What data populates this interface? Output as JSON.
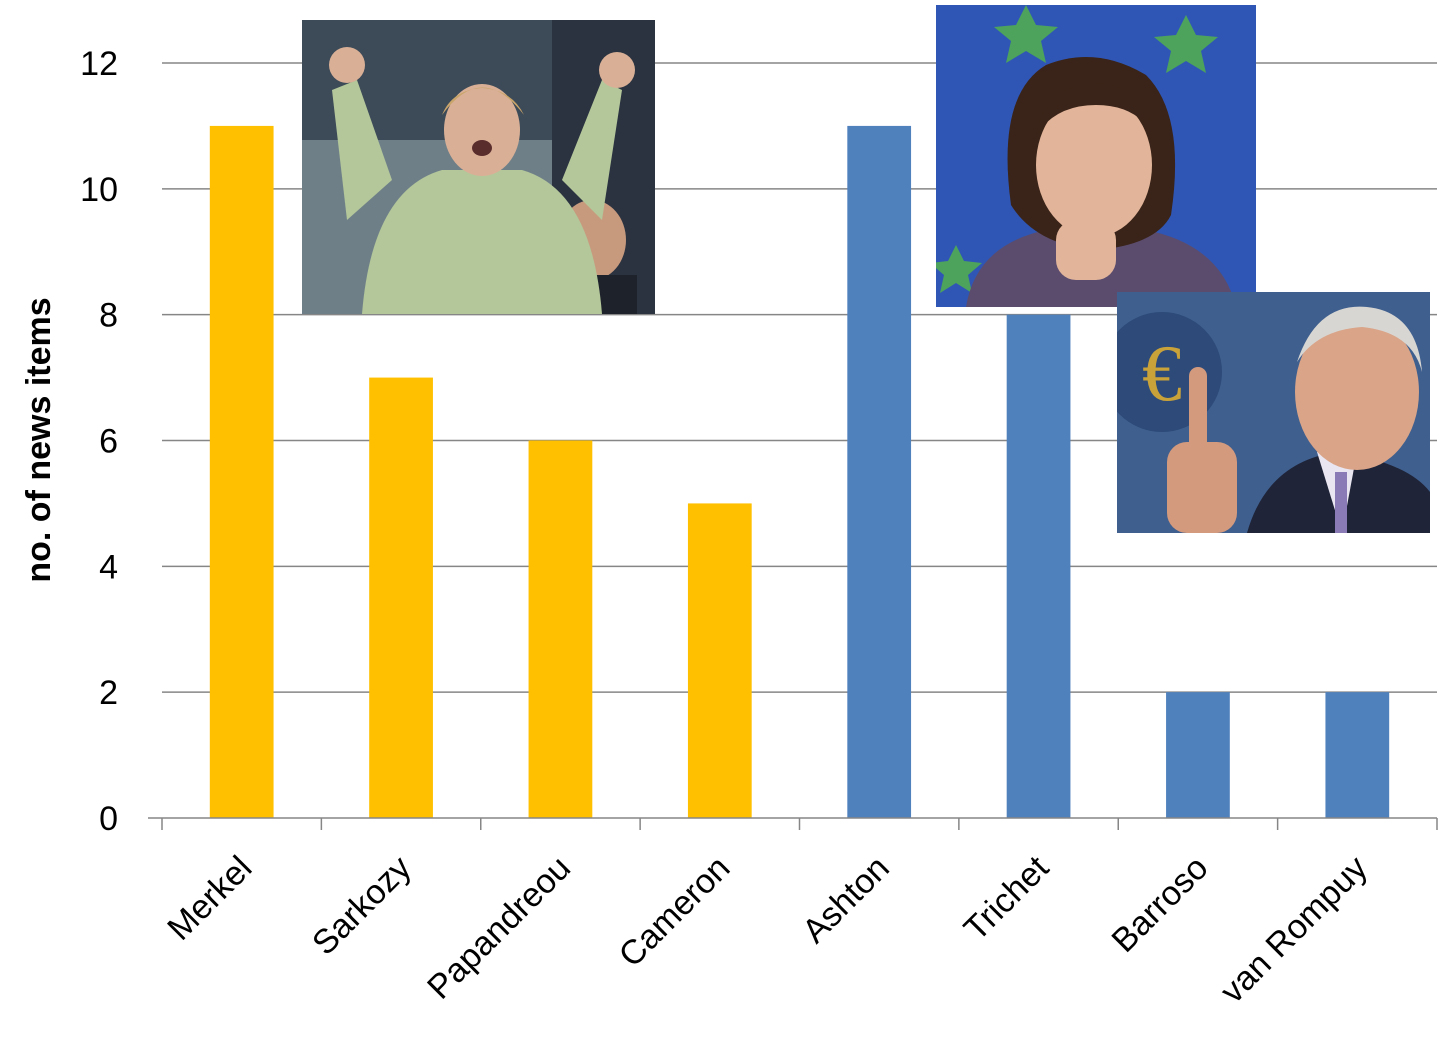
{
  "chart_data": {
    "type": "bar",
    "title": "",
    "xlabel": "",
    "ylabel": "no. of news items",
    "ylim": [
      0,
      12
    ],
    "yticks": [
      0,
      2,
      4,
      6,
      8,
      10,
      12
    ],
    "grid": true,
    "legend": "none",
    "categories": [
      "Merkel",
      "Sarkozy",
      "Papandreou",
      "Cameron",
      "Ashton",
      "Trichet",
      "Barroso",
      "van Rompuy"
    ],
    "values": [
      11,
      7,
      6,
      5,
      11,
      8,
      2,
      2
    ],
    "bar_colors": [
      "#ffc000",
      "#ffc000",
      "#ffc000",
      "#ffc000",
      "#4f81bd",
      "#4f81bd",
      "#4f81bd",
      "#4f81bd"
    ],
    "gridline_color": "#868686"
  },
  "photos": [
    {
      "subject": "Merkel"
    },
    {
      "subject": "Ashton"
    },
    {
      "subject": "Trichet"
    }
  ]
}
